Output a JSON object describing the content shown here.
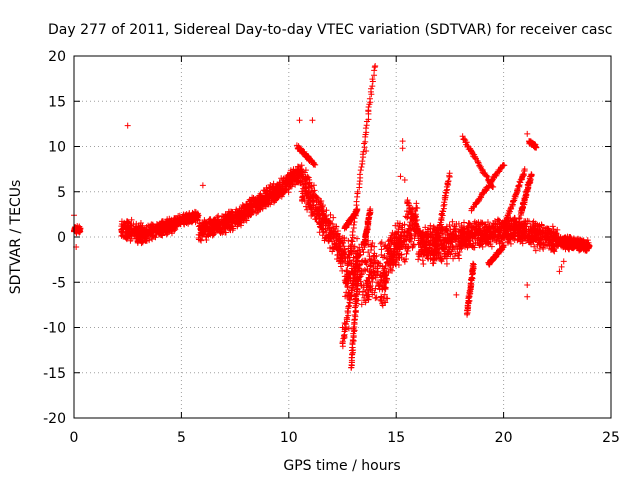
{
  "chart_data": {
    "type": "scatter",
    "title": "Day 277 of 2011, Sidereal Day-to-day VTEC variation (SDTVAR) for receiver casc",
    "xlabel": "GPS time / hours",
    "ylabel": "SDTVAR / TECUs",
    "xlim": [
      0,
      25
    ],
    "ylim": [
      -20,
      20
    ],
    "xticks": [
      "0",
      "5",
      "10",
      "15",
      "20",
      "25"
    ],
    "yticks": [
      "-20",
      "-15",
      "-10",
      "-5",
      "0",
      "5",
      "10",
      "15",
      "20"
    ],
    "grid": true,
    "marker": "+",
    "series_color": "#ff0000",
    "series": [
      {
        "name": "SDTVAR",
        "bands": [
          {
            "x": [
              0.0,
              0.3
            ],
            "center": [
              0.8,
              0.8
            ],
            "spread": 0.6
          },
          {
            "x": [
              2.2,
              3.2
            ],
            "center": [
              1.0,
              0.3
            ],
            "spread": 1.6
          },
          {
            "x": [
              3.2,
              4.8
            ],
            "center": [
              0.3,
              1.5
            ],
            "spread": 1.2
          },
          {
            "x": [
              4.8,
              5.8
            ],
            "center": [
              1.8,
              2.3
            ],
            "spread": 0.8
          },
          {
            "x": [
              5.8,
              7.8
            ],
            "center": [
              0.5,
              2.2
            ],
            "spread": 1.5
          },
          {
            "x": [
              7.8,
              10.0
            ],
            "center": [
              2.5,
              6.0
            ],
            "spread": 1.5
          },
          {
            "x": [
              10.0,
              10.6
            ],
            "center": [
              6.5,
              7.0
            ],
            "spread": 1.5
          },
          {
            "x": [
              10.6,
              11.4
            ],
            "center": [
              6.0,
              3.0
            ],
            "spread": 3.0
          },
          {
            "x": [
              11.4,
              12.6
            ],
            "center": [
              2.5,
              -2.0
            ],
            "spread": 3.0
          },
          {
            "x": [
              12.6,
              14.6
            ],
            "center": [
              -4.0,
              -4.0
            ],
            "spread": 5.0
          },
          {
            "x": [
              14.6,
              16.0
            ],
            "center": [
              -2.0,
              1.5
            ],
            "spread": 3.5
          },
          {
            "x": [
              16.0,
              18.0
            ],
            "center": [
              -1.0,
              -0.5
            ],
            "spread": 3.0
          },
          {
            "x": [
              18.0,
              20.5
            ],
            "center": [
              0.0,
              0.8
            ],
            "spread": 2.0
          },
          {
            "x": [
              20.5,
              22.5
            ],
            "center": [
              0.8,
              -0.3
            ],
            "spread": 2.0
          },
          {
            "x": [
              22.5,
              24.0
            ],
            "center": [
              -0.5,
              -1.0
            ],
            "spread": 1.0
          }
        ],
        "lines": [
          {
            "x": [
              12.8,
              14.0
            ],
            "y": [
              -3.0,
              19.0
            ]
          },
          {
            "x": [
              12.5,
              13.2
            ],
            "y": [
              -12.0,
              -2.0
            ]
          },
          {
            "x": [
              12.9,
              13.2
            ],
            "y": [
              -14.5,
              -5.0
            ]
          },
          {
            "x": [
              12.6,
              13.2
            ],
            "y": [
              1.0,
              3.0
            ]
          },
          {
            "x": [
              15.5,
              16.5
            ],
            "y": [
              4.0,
              -2.0
            ]
          },
          {
            "x": [
              16.7,
              17.5
            ],
            "y": [
              -3.0,
              7.0
            ]
          },
          {
            "x": [
              18.1,
              19.5
            ],
            "y": [
              11.0,
              5.5
            ]
          },
          {
            "x": [
              18.3,
              18.6
            ],
            "y": [
              -8.5,
              -3.0
            ]
          },
          {
            "x": [
              19.3,
              20.0
            ],
            "y": [
              -3.0,
              -1.0
            ]
          },
          {
            "x": [
              20.0,
              21.0
            ],
            "y": [
              1.0,
              7.5
            ]
          },
          {
            "x": [
              20.8,
              21.3
            ],
            "y": [
              2.5,
              7.0
            ]
          },
          {
            "x": [
              21.2,
              21.5
            ],
            "y": [
              10.5,
              10.0
            ]
          },
          {
            "x": [
              18.5,
              20.0
            ],
            "y": [
              3.0,
              8.0
            ]
          },
          {
            "x": [
              10.4,
              11.2
            ],
            "y": [
              10.0,
              8.0
            ]
          },
          {
            "x": [
              13.5,
              13.8
            ],
            "y": [
              -1.0,
              3.0
            ]
          }
        ],
        "points": [
          [
            0.0,
            2.4
          ],
          [
            0.1,
            -1.1
          ],
          [
            0.15,
            1.2
          ],
          [
            2.5,
            12.3
          ],
          [
            6.0,
            5.7
          ],
          [
            10.5,
            12.9
          ],
          [
            11.1,
            12.9
          ],
          [
            12.5,
            -10.0
          ],
          [
            12.6,
            -9.5
          ],
          [
            12.8,
            -10.1
          ],
          [
            15.3,
            10.6
          ],
          [
            15.3,
            9.8
          ],
          [
            15.2,
            6.7
          ],
          [
            15.4,
            6.3
          ],
          [
            17.8,
            -6.4
          ],
          [
            21.1,
            11.4
          ],
          [
            21.2,
            10.3
          ],
          [
            21.1,
            -5.3
          ],
          [
            21.1,
            -6.6
          ],
          [
            22.7,
            -3.3
          ],
          [
            22.6,
            -3.8
          ],
          [
            22.8,
            -2.7
          ],
          [
            23.8,
            -1.5
          ],
          [
            24.0,
            -1.0
          ],
          [
            21.5,
            -1.5
          ],
          [
            13.6,
            9.5
          ],
          [
            13.7,
            14.0
          ]
        ]
      }
    ]
  }
}
